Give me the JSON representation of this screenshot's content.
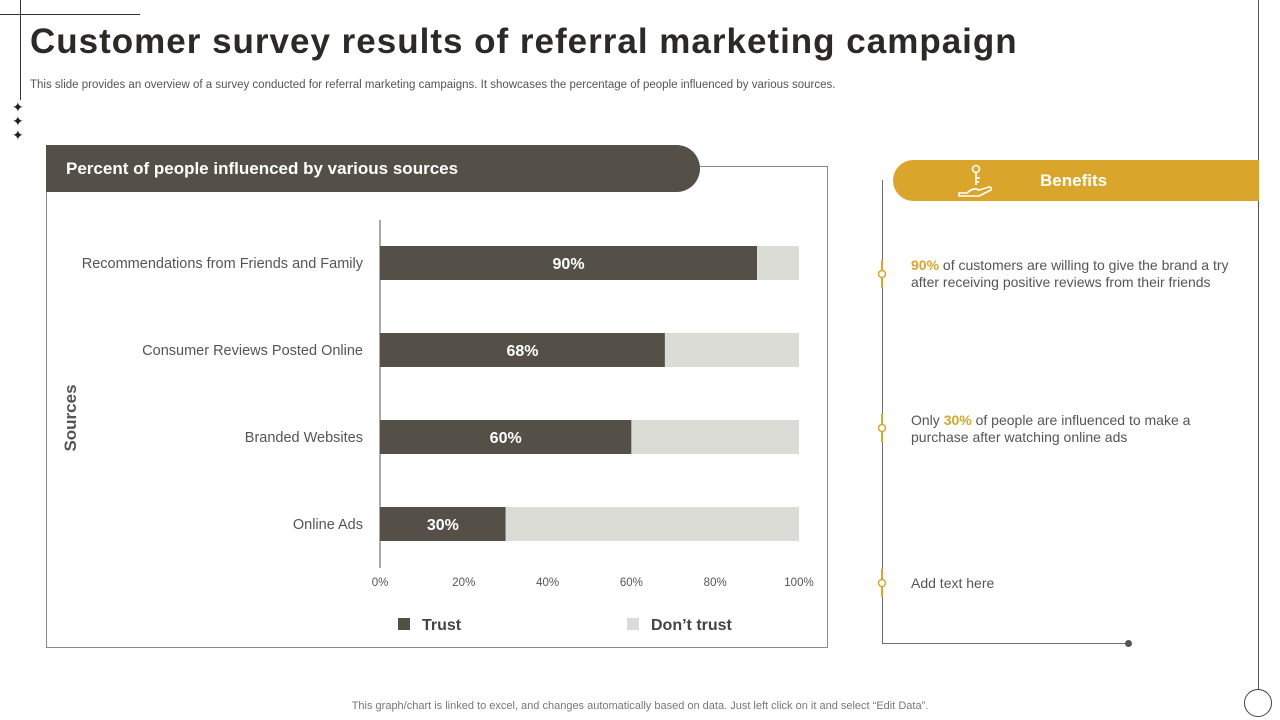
{
  "page": {
    "title": "Customer survey results of referral marketing campaign",
    "subtitle": "This slide provides an overview of a survey conducted for referral marketing campaigns. It showcases the percentage of people influenced by various sources.",
    "footer": "This graph/chart is linked to excel,  and changes automatically based on data. Just left click on it and select “Edit Data”."
  },
  "chart_panel": {
    "header": "Percent of people influenced by various sources"
  },
  "chart_data": {
    "type": "bar",
    "orientation": "horizontal",
    "stacked": true,
    "title": "Percent of people influenced by various sources",
    "ylabel": "Sources",
    "xlabel": "",
    "categories": [
      "Recommendations from Friends and Family",
      "Consumer Reviews Posted Online",
      "Branded Websites",
      "Online Ads"
    ],
    "series": [
      {
        "name": "Trust",
        "values": [
          90,
          68,
          60,
          30
        ],
        "color": "#545048"
      },
      {
        "name": "Don’t trust",
        "values": [
          10,
          32,
          40,
          70
        ],
        "color": "#dcdcd7"
      }
    ],
    "data_labels": [
      "90%",
      "68%",
      "60%",
      "30%"
    ],
    "xlim": [
      0,
      100
    ],
    "xticks": [
      0,
      20,
      40,
      60,
      80,
      100
    ],
    "xtick_labels": [
      "0%",
      "20%",
      "40%",
      "60%",
      "80%",
      "100%"
    ],
    "legend_position": "bottom"
  },
  "benefits": {
    "title": "Benefits",
    "icon": "hand-key-icon",
    "accent": "#d9a52a",
    "items": [
      {
        "highlight": "90%",
        "prefix": "",
        "text": " of customers are willing  to give the brand a try after receiving positive reviews from their friends"
      },
      {
        "prefix": "Only ",
        "highlight": "30%",
        "text": " of people are influenced to make a purchase after watching online ads"
      },
      {
        "prefix": "",
        "highlight": "",
        "text": "Add text here"
      }
    ]
  }
}
